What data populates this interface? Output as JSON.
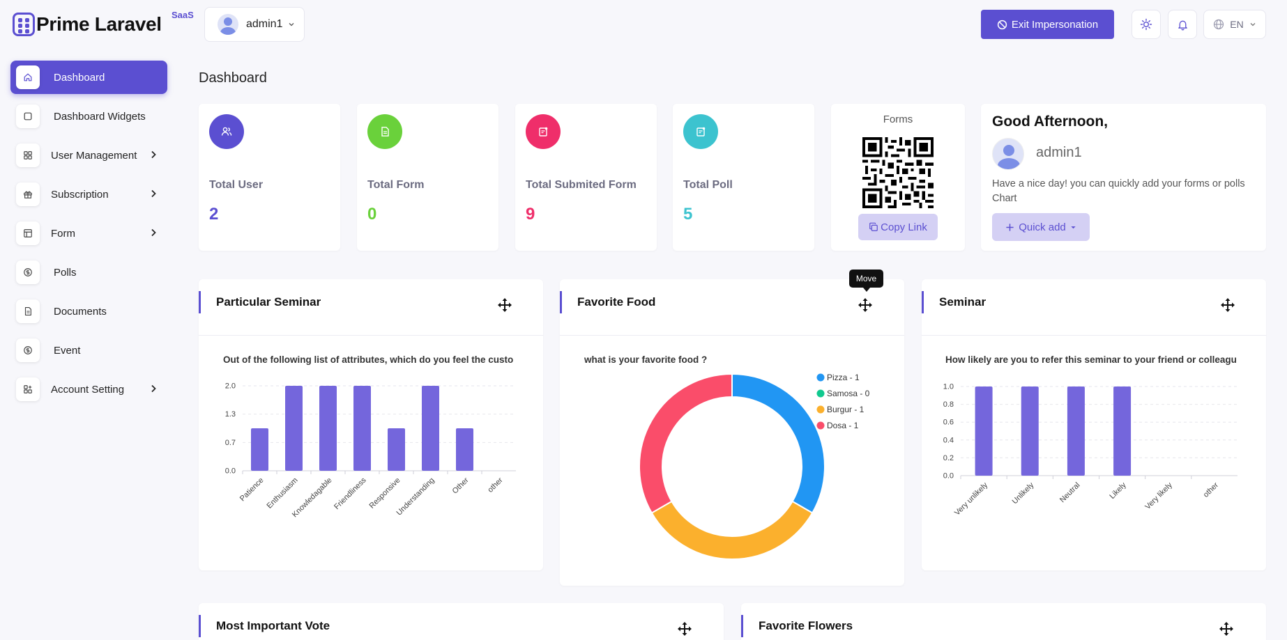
{
  "header": {
    "brand": "Prime Laravel",
    "brand_sup": "SaaS",
    "user": "admin1",
    "exit_label": "Exit Impersonation",
    "lang": "EN"
  },
  "sidebar": {
    "items": [
      {
        "label": "Dashboard",
        "icon": "home-icon"
      },
      {
        "label": "Dashboard Widgets",
        "icon": "square-icon"
      },
      {
        "label": "User Management",
        "icon": "grid-icon"
      },
      {
        "label": "Subscription",
        "icon": "gift-icon"
      },
      {
        "label": "Form",
        "icon": "table-icon"
      },
      {
        "label": "Polls",
        "icon": "coin-icon"
      },
      {
        "label": "Documents",
        "icon": "document-icon"
      },
      {
        "label": "Event",
        "icon": "coin-icon"
      },
      {
        "label": "Account Setting",
        "icon": "apps-icon"
      }
    ]
  },
  "page": {
    "title": "Dashboard"
  },
  "stats": [
    {
      "label": "Total User",
      "value": "2",
      "color": "#5b4fd1"
    },
    {
      "label": "Total Form",
      "value": "0",
      "color": "#6ad13b"
    },
    {
      "label": "Total Submited Form",
      "value": "9",
      "color": "#ef2e6a"
    },
    {
      "label": "Total Poll",
      "value": "5",
      "color": "#3cc3cf"
    }
  ],
  "forms_card": {
    "title": "Forms",
    "copy_label": "Copy Link"
  },
  "greeting": {
    "title": "Good Afternoon,",
    "name": "admin1",
    "message": "Have a nice day! you can quickly add your forms or polls Chart",
    "quick_add": "Quick add"
  },
  "widgets": {
    "w1": {
      "title": "Particular Seminar",
      "question": "Out of the following list of attributes, which do you feel the custo"
    },
    "w2": {
      "title": "Favorite Food",
      "question": "what is your favorite food ?"
    },
    "w3": {
      "title": "Seminar",
      "question": "How likely are you to refer this seminar to your friend or colleagu"
    },
    "w4": {
      "title": "Most Important Vote"
    },
    "w5": {
      "title": "Favorite Flowers"
    }
  },
  "tooltip": "Move",
  "chart_data": [
    {
      "type": "bar",
      "categories": [
        "Patience",
        "Enthusiasm",
        "Knowledagable",
        "Friendliness",
        "Responsive",
        "Understanding",
        "Other",
        "other"
      ],
      "values": [
        1,
        2,
        2,
        2,
        1,
        2,
        1,
        0
      ],
      "yticks": [
        "0.0",
        "0.7",
        "1.3",
        "2.0"
      ],
      "ylim": [
        0,
        2
      ],
      "color": "#7466dc"
    },
    {
      "type": "pie",
      "categories": [
        "Pizza - 1",
        "Samosa - 0",
        "Burgur - 1",
        "Dosa - 1"
      ],
      "values": [
        1,
        0,
        1,
        1
      ],
      "colors": [
        "#2196f3",
        "#10c98f",
        "#fbb02d",
        "#fa4d6a"
      ]
    },
    {
      "type": "bar",
      "categories": [
        "Very unlikely",
        "Unlikely",
        "Neutral",
        "Likely",
        "Very likely",
        "other"
      ],
      "values": [
        1,
        1,
        1,
        1,
        0,
        0
      ],
      "yticks": [
        "0.0",
        "0.2",
        "0.4",
        "0.6",
        "0.8",
        "1.0"
      ],
      "ylim": [
        0,
        1
      ],
      "color": "#7466dc"
    }
  ]
}
